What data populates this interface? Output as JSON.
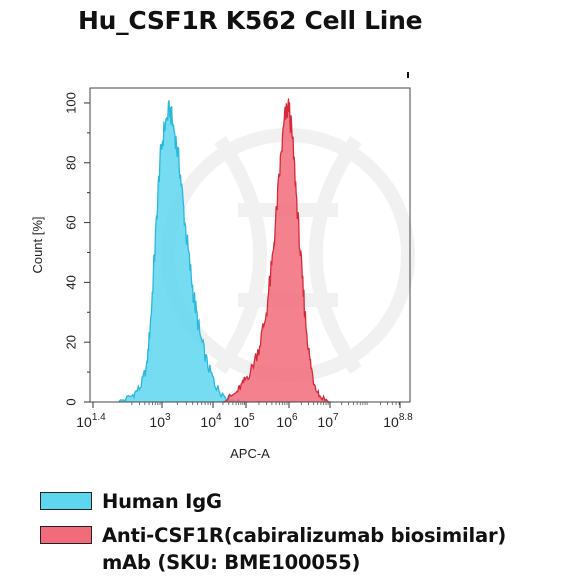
{
  "chart_data": {
    "type": "area",
    "title": "Hu_CSF1R K562 Cell Line",
    "xlabel": "APC-A",
    "ylabel": "Count [%]",
    "x_scale": "log10",
    "xlim": [
      1.4,
      8.8
    ],
    "ylim": [
      0,
      105
    ],
    "y_ticks": [
      "0",
      "20",
      "40",
      "60",
      "80",
      "100"
    ],
    "x_ticks": [
      {
        "base": "10",
        "exp": "1.4"
      },
      {
        "base": "10",
        "exp": "3"
      },
      {
        "base": "10",
        "exp": "4"
      },
      {
        "base": "10",
        "exp": "5"
      },
      {
        "base": "10",
        "exp": "6"
      },
      {
        "base": "10",
        "exp": "7"
      },
      {
        "base": "10",
        "exp": "8.8"
      }
    ],
    "series": [
      {
        "name": "Human IgG",
        "color": "#5ED6F0",
        "stroke": "#2CB8DA",
        "x_log10": [
          2.0,
          2.3,
          2.5,
          2.65,
          2.75,
          2.85,
          2.95,
          3.05,
          3.15,
          3.25,
          3.35,
          3.45,
          3.55,
          3.65,
          3.75,
          3.9,
          4.05,
          4.25,
          4.5,
          4.8
        ],
        "values": [
          0,
          2,
          5,
          12,
          30,
          55,
          80,
          92,
          98,
          90,
          78,
          60,
          45,
          32,
          22,
          12,
          6,
          3,
          1,
          0
        ]
      },
      {
        "name": "Anti-CSF1R(cabiralizumab biosimilar) mAb (SKU: BME100055)",
        "color": "#F26B7A",
        "stroke": "#D42A3A",
        "x_log10": [
          4.3,
          4.7,
          4.9,
          5.1,
          5.3,
          5.45,
          5.6,
          5.7,
          5.8,
          5.9,
          6.0,
          6.1,
          6.2,
          6.3,
          6.4,
          6.5,
          6.6,
          6.75,
          7.0
        ],
        "values": [
          0,
          3,
          6,
          10,
          18,
          28,
          45,
          62,
          80,
          95,
          99,
          85,
          65,
          45,
          28,
          15,
          7,
          2,
          0
        ]
      }
    ],
    "legend": [
      {
        "label": "Human IgG",
        "color": "#5ED6F0"
      },
      {
        "label": "Anti-CSF1R(cabiralizumab biosimilar)",
        "label2": "mAb (SKU: BME100055)",
        "color": "#F26B7A"
      }
    ],
    "grid": false,
    "legend_placement": "bottom"
  }
}
